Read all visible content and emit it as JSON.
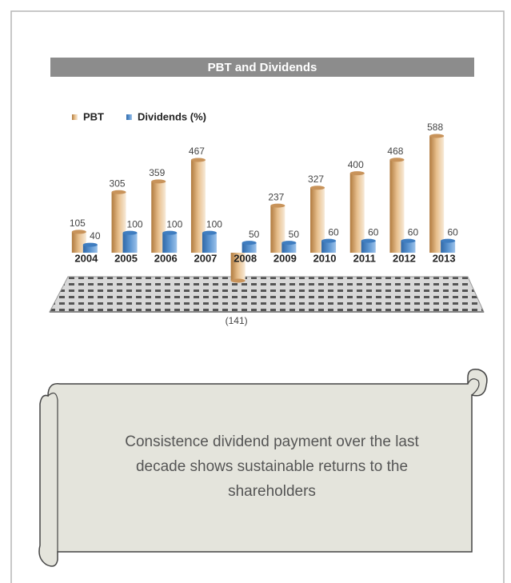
{
  "chart_data": {
    "type": "bar",
    "title": "PBT and Dividends",
    "categories": [
      "2004",
      "2005",
      "2006",
      "2007",
      "2008",
      "2009",
      "2010",
      "2011",
      "2012",
      "2013"
    ],
    "series": [
      {
        "name": "PBT",
        "color": "#c8935a",
        "values": [
          105,
          305,
          359,
          467,
          -141,
          237,
          327,
          400,
          468,
          588
        ],
        "value_labels": [
          "105",
          "305",
          "359",
          "467",
          "(141)",
          "237",
          "327",
          "400",
          "468",
          "588"
        ]
      },
      {
        "name": "Dividends (%)",
        "color": "#3f7dc0",
        "values": [
          40,
          100,
          100,
          100,
          50,
          50,
          60,
          60,
          60,
          60
        ]
      }
    ],
    "annotation": "Consistence dividend payment over the last decade shows sustainable returns to the shareholders"
  }
}
